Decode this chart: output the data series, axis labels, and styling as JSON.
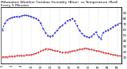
{
  "title": "Milwaukee Weather Outdoor Humidity (Blue)  vs Temperature (Red)  Every 5 Minutes",
  "title_fontsize": 3.2,
  "background_color": "#ffffff",
  "grid_color": "#bbbbbb",
  "humidity_color": "#0000cc",
  "temp_color": "#cc0000",
  "humidity_values": [
    60,
    72,
    78,
    80,
    82,
    83,
    84,
    84,
    85,
    86,
    86,
    85,
    84,
    82,
    80,
    78,
    72,
    62,
    55,
    50,
    48,
    50,
    55,
    60,
    65,
    68,
    72,
    76,
    78,
    80,
    76,
    68,
    60,
    54,
    50,
    48,
    46,
    48,
    52,
    56,
    48,
    44,
    55,
    58,
    60,
    62,
    65,
    68,
    70,
    72
  ],
  "temp_values": [
    12,
    12,
    12,
    13,
    13,
    13,
    14,
    14,
    14,
    14,
    15,
    15,
    16,
    17,
    18,
    20,
    22,
    24,
    26,
    26,
    25,
    24,
    23,
    22,
    21,
    20,
    20,
    20,
    21,
    22,
    23,
    24,
    25,
    26,
    27,
    27,
    26,
    25,
    24,
    23,
    22,
    21,
    20,
    19,
    18,
    17,
    16,
    15,
    14,
    14
  ],
  "ylim": [
    0,
    100
  ],
  "yticks_right": [
    10,
    20,
    30,
    40,
    50,
    60,
    70,
    80,
    90
  ],
  "ytick_labels_right": [
    "10",
    "20",
    "30",
    "40",
    "50",
    "60",
    "70",
    "80",
    "90"
  ],
  "num_points": 50,
  "x_tick_spacing": 4,
  "xlabel_fontsize": 2.5,
  "ylabel_fontsize": 2.8,
  "line_width": 0.5,
  "marker_size": 0.8,
  "marker": "."
}
